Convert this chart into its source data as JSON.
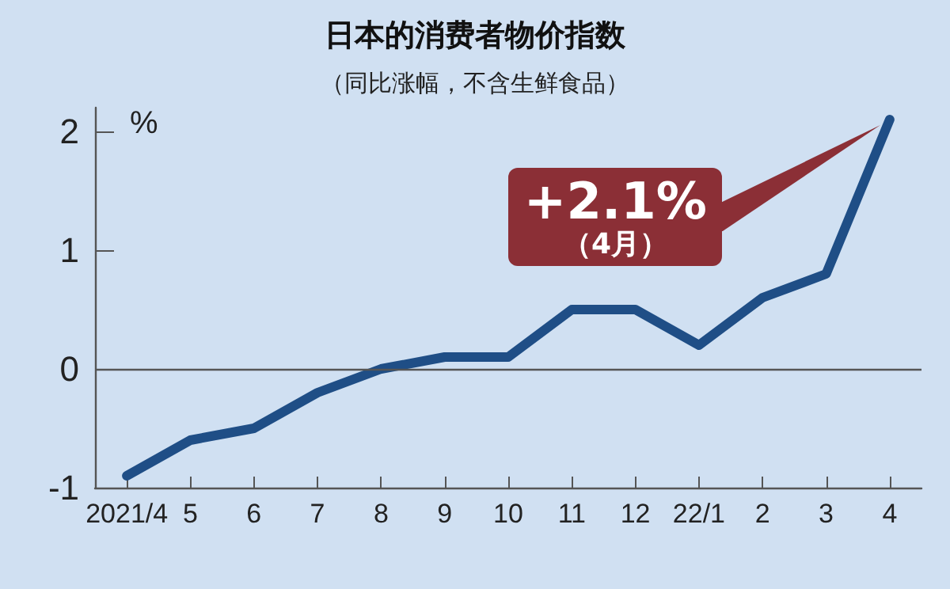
{
  "chart_data": {
    "type": "line",
    "title": "日本的消费者物价指数",
    "subtitle": "（同比涨幅，不含生鲜食品）",
    "ylabel": "%",
    "categories": [
      "2021/4",
      "5",
      "6",
      "7",
      "8",
      "9",
      "10",
      "11",
      "12",
      "22/1",
      "2",
      "3",
      "4"
    ],
    "series": [
      {
        "color": "#1f4e86",
        "values": [
          -0.9,
          -0.6,
          -0.5,
          -0.2,
          0.0,
          0.1,
          0.1,
          0.5,
          0.5,
          0.2,
          0.6,
          0.8,
          2.1
        ]
      }
    ],
    "ylim": [
      -1,
      2.2
    ],
    "yticks": [
      -1,
      0,
      1,
      2
    ],
    "grid": false,
    "marker": "none",
    "line_style": "solid",
    "ref_lines": [
      {
        "axis": "y",
        "value": 0,
        "color": "#555555"
      }
    ],
    "annotations": [
      "+2.1%\n（4月）"
    ]
  }
}
